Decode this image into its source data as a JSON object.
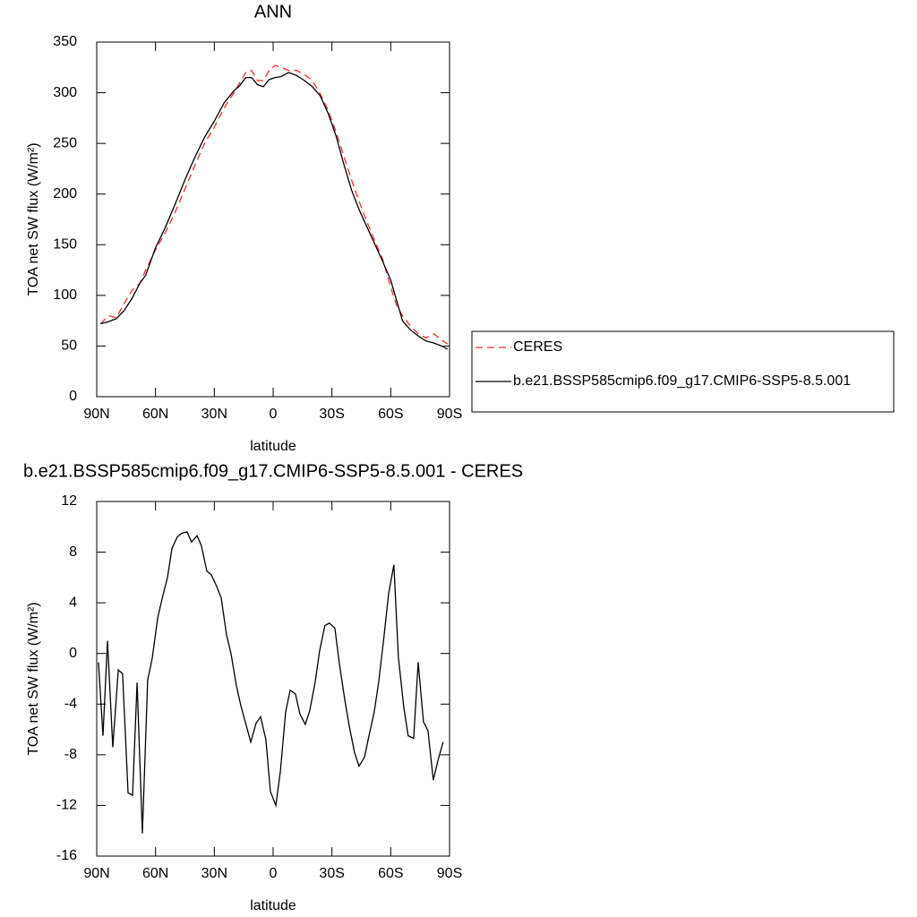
{
  "chart_data": [
    {
      "type": "line",
      "title": "ANN",
      "xlabel": "latitude",
      "ylabel": "TOA net SW flux (W/m²)",
      "x": [
        88,
        84,
        80,
        76,
        72,
        68,
        65,
        60,
        55,
        50,
        45,
        40,
        35,
        30,
        25,
        20,
        17,
        14,
        11,
        8,
        5,
        2,
        -1,
        -4,
        -8,
        -12,
        -16,
        -20,
        -24,
        -28,
        -32,
        -36,
        -40,
        -44,
        -48,
        -52,
        -56,
        -60,
        -63,
        -66,
        -70,
        -74,
        -78,
        -82,
        -86,
        -89
      ],
      "series": [
        {
          "name": "CERES",
          "color": "#e8302e",
          "linestyle": "dashed",
          "values": [
            72,
            80,
            78,
            92,
            105,
            112,
            125,
            145,
            162,
            182,
            205,
            228,
            250,
            266,
            285,
            300,
            310,
            320,
            322,
            312,
            312,
            322,
            327,
            325,
            322,
            322,
            318,
            312,
            299,
            283,
            262,
            238,
            214,
            192,
            172,
            153,
            135,
            108,
            90,
            80,
            70,
            62,
            58,
            62,
            56,
            52
          ]
        },
        {
          "name": "b.e21.BSSP585cmip6.f09_g17.CMIP6-SSP5-8.5.001",
          "color": "#000000",
          "linestyle": "solid",
          "values": [
            72,
            74,
            77,
            85,
            97,
            112,
            120,
            147,
            167,
            190,
            214,
            236,
            256,
            272,
            290,
            302,
            307,
            315,
            315,
            308,
            306,
            313,
            315,
            316,
            320,
            317,
            312,
            306,
            297,
            280,
            258,
            230,
            204,
            184,
            167,
            150,
            133,
            115,
            95,
            75,
            66,
            60,
            55,
            53,
            50,
            47
          ]
        }
      ],
      "xlim": [
        90,
        -90
      ],
      "xticks": [
        {
          "value": 90,
          "label": "90N"
        },
        {
          "value": 60,
          "label": "60N"
        },
        {
          "value": 30,
          "label": "30N"
        },
        0,
        {
          "value": -30,
          "label": "30S"
        },
        {
          "value": -60,
          "label": "60S"
        },
        {
          "value": -90,
          "label": "90S"
        }
      ],
      "ylim": [
        0,
        350
      ],
      "yticks": [
        0,
        50,
        100,
        150,
        200,
        250,
        300,
        350
      ],
      "legend": "right"
    },
    {
      "type": "line",
      "title": "b.e21.BSSP585cmip6.f09_g17.CMIP6-SSP5-8.5.001 - CERES",
      "xlabel": "latitude",
      "ylabel": "TOA net SW flux (W/m²)",
      "x": [
        89.1,
        86.8,
        84.5,
        81.8,
        79.0,
        76.8,
        74.0,
        71.7,
        69.4,
        66.7,
        64.0,
        61.7,
        58.9,
        56.2,
        53.9,
        51.6,
        48.9,
        46.6,
        43.9,
        41.6,
        38.8,
        36.6,
        33.8,
        31.5,
        28.8,
        26.5,
        23.8,
        21.5,
        18.8,
        16.5,
        13.7,
        11.4,
        8.7,
        6.4,
        3.7,
        1.4,
        -1.4,
        -3.7,
        -6.4,
        -8.7,
        -11.4,
        -13.7,
        -16.4,
        -18.7,
        -21.4,
        -23.7,
        -26.4,
        -28.7,
        -31.5,
        -33.7,
        -36.5,
        -38.8,
        -41.5,
        -43.8,
        -46.6,
        -48.9,
        -51.6,
        -53.9,
        -56.6,
        -58.9,
        -61.6,
        -63.9,
        -66.7,
        -68.9,
        -71.7,
        -74.0,
        -76.7,
        -79.0,
        -81.7,
        -84.0,
        -86.7
      ],
      "series": [
        {
          "color": "#000000",
          "linestyle": "solid",
          "values": [
            -0.7,
            -6.5,
            1.0,
            -7.4,
            -1.3,
            -1.6,
            -11.0,
            -11.2,
            -2.3,
            -14.2,
            -2.1,
            -0.4,
            2.8,
            4.6,
            6.0,
            8.3,
            9.2,
            9.5,
            9.6,
            8.8,
            9.3,
            8.5,
            6.5,
            6.2,
            5.3,
            4.4,
            1.5,
            0.0,
            -2.5,
            -4.1,
            -5.7,
            -7.0,
            -5.5,
            -5.0,
            -6.8,
            -10.9,
            -12.0,
            -9.3,
            -4.6,
            -2.9,
            -3.2,
            -4.8,
            -5.6,
            -4.5,
            -2.3,
            0.2,
            2.2,
            2.4,
            2.0,
            -0.7,
            -3.6,
            -5.7,
            -7.8,
            -8.9,
            -8.2,
            -6.5,
            -4.6,
            -2.2,
            1.4,
            4.7,
            7.0,
            -0.3,
            -4.3,
            -6.5,
            -6.7,
            -0.7,
            -5.4,
            -6.1,
            -10.0,
            -8.5,
            -7.0
          ]
        }
      ],
      "xlim": [
        90,
        -90
      ],
      "xticks": [
        {
          "value": 90,
          "label": "90N"
        },
        {
          "value": 60,
          "label": "60N"
        },
        {
          "value": 30,
          "label": "30N"
        },
        0,
        {
          "value": -30,
          "label": "30S"
        },
        {
          "value": -60,
          "label": "60S"
        },
        {
          "value": -90,
          "label": "90S"
        }
      ],
      "ylim": [
        -16,
        12
      ],
      "yticks": [
        -16,
        -12,
        -8,
        -4,
        0,
        4,
        8,
        12
      ]
    }
  ]
}
